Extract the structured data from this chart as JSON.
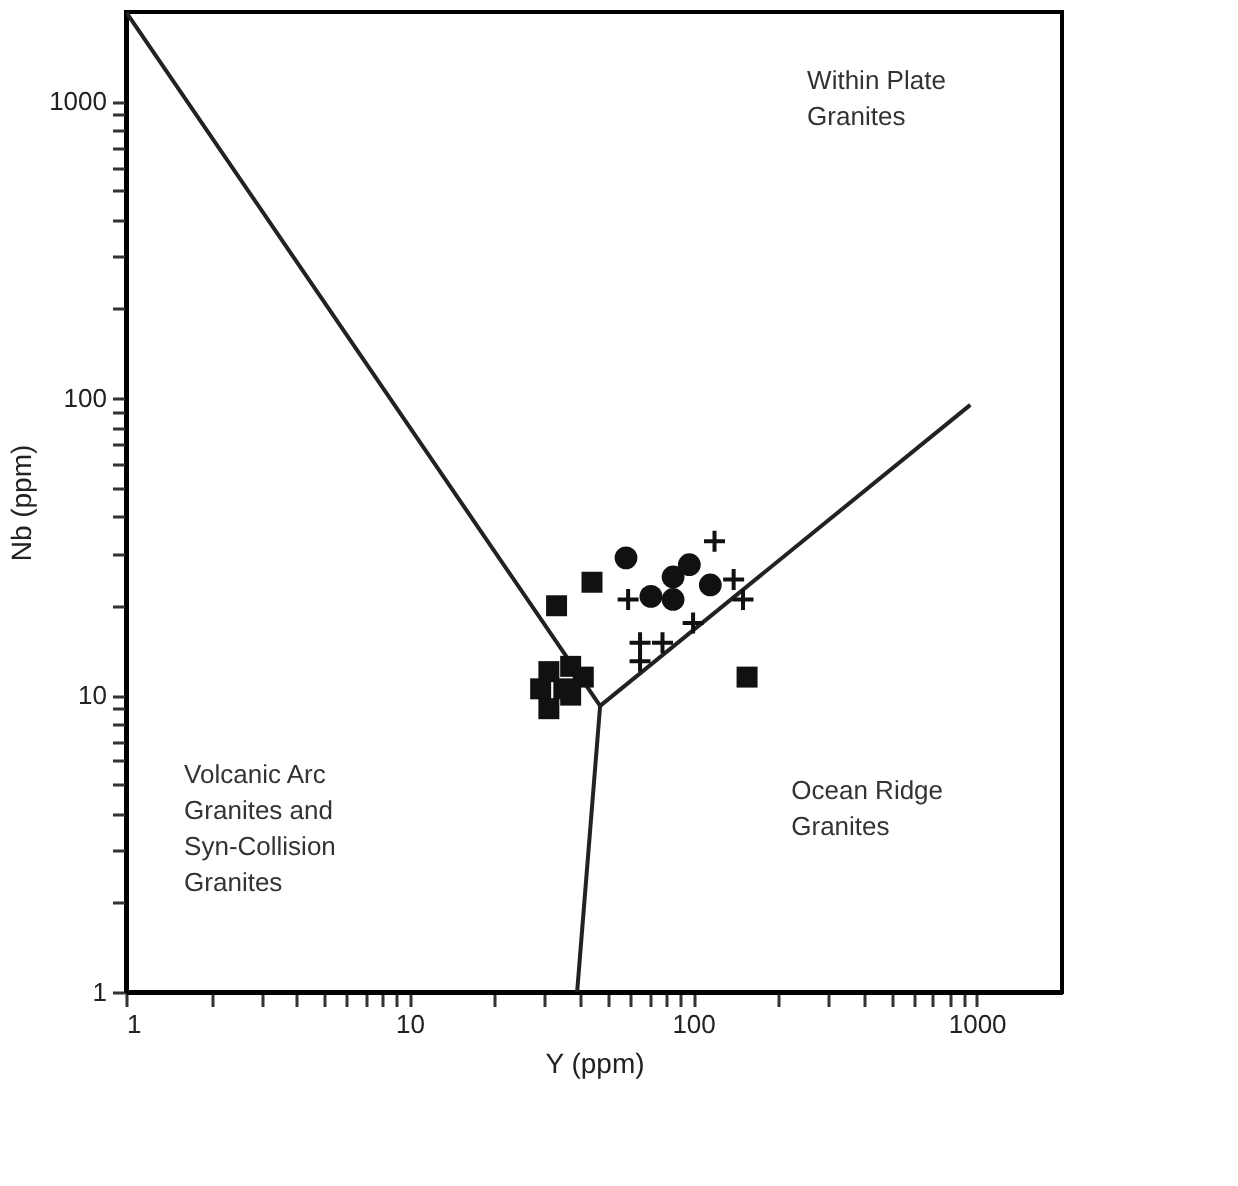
{
  "chart_data": {
    "type": "scatter",
    "xlabel": "Y (ppm)",
    "ylabel": "Nb (ppm)",
    "log": "xy",
    "grid": false,
    "xlim": [
      1,
      2000
    ],
    "ylim": [
      1,
      2000
    ],
    "xticks": [
      1,
      {
        "value": 2,
        "label": null
      },
      {
        "value": 3,
        "label": null
      },
      {
        "value": 4,
        "label": null
      },
      {
        "value": 5,
        "label": null
      },
      {
        "value": 6,
        "label": null
      },
      {
        "value": 7,
        "label": null
      },
      {
        "value": 8,
        "label": null
      },
      {
        "value": 9,
        "label": null
      },
      10,
      {
        "value": 20,
        "label": null
      },
      {
        "value": 30,
        "label": null
      },
      {
        "value": 40,
        "label": null
      },
      {
        "value": 50,
        "label": null
      },
      {
        "value": 60,
        "label": null
      },
      {
        "value": 70,
        "label": null
      },
      {
        "value": 80,
        "label": null
      },
      {
        "value": 90,
        "label": null
      },
      100,
      {
        "value": 200,
        "label": null
      },
      {
        "value": 300,
        "label": null
      },
      {
        "value": 400,
        "label": null
      },
      {
        "value": 500,
        "label": null
      },
      {
        "value": 600,
        "label": null
      },
      {
        "value": 700,
        "label": null
      },
      {
        "value": 800,
        "label": null
      },
      {
        "value": 900,
        "label": null
      },
      1000
    ],
    "yticks": [
      1,
      {
        "value": 2,
        "label": null
      },
      {
        "value": 3,
        "label": null
      },
      {
        "value": 4,
        "label": null
      },
      {
        "value": 5,
        "label": null
      },
      {
        "value": 6,
        "label": null
      },
      {
        "value": 7,
        "label": null
      },
      {
        "value": 8,
        "label": null
      },
      {
        "value": 9,
        "label": null
      },
      10,
      {
        "value": 20,
        "label": null
      },
      {
        "value": 30,
        "label": null
      },
      {
        "value": 40,
        "label": null
      },
      {
        "value": 50,
        "label": null
      },
      {
        "value": 60,
        "label": null
      },
      {
        "value": 70,
        "label": null
      },
      {
        "value": 80,
        "label": null
      },
      {
        "value": 90,
        "label": null
      },
      100,
      {
        "value": 200,
        "label": null
      },
      {
        "value": 300,
        "label": null
      },
      {
        "value": 400,
        "label": null
      },
      {
        "value": 500,
        "label": null
      },
      {
        "value": 600,
        "label": null
      },
      {
        "value": 700,
        "label": null
      },
      {
        "value": 800,
        "label": null
      },
      {
        "value": 900,
        "label": null
      },
      1000
    ],
    "series": [
      {
        "type": "line",
        "color": "#222222",
        "line_style": "solid",
        "marker": "none",
        "x": [
          1,
          47,
          950
        ],
        "values": [
          2000,
          9.2,
          95
        ]
      },
      {
        "type": "line",
        "color": "#222222",
        "line_style": "solid",
        "marker": "none",
        "x": [
          47,
          39
        ],
        "values": [
          9.2,
          1
        ]
      },
      {
        "color": "#111111",
        "marker": "square",
        "x": [
          44,
          33,
          31,
          37,
          41,
          29,
          35,
          31,
          37,
          155
        ],
        "values": [
          24,
          20,
          12,
          12.5,
          11.5,
          10.5,
          10.5,
          9,
          10,
          11.5
        ]
      },
      {
        "color": "#111111",
        "marker": "circle",
        "x": [
          58,
          71,
          85,
          97,
          85,
          115
        ],
        "values": [
          29,
          21.5,
          25,
          27.5,
          21,
          23.5
        ]
      },
      {
        "color": "#111111",
        "marker": "cross",
        "x": [
          119,
          59,
          139,
          150,
          100,
          65,
          78,
          65
        ],
        "values": [
          33,
          21,
          24.5,
          21,
          17.5,
          15,
          15,
          13
        ]
      }
    ],
    "annotations": [
      "Within Plate\nGranites",
      "Volcanic Arc\nGranites and\nSyn-Collision\nGranites",
      "Ocean Ridge\nGranites"
    ]
  }
}
